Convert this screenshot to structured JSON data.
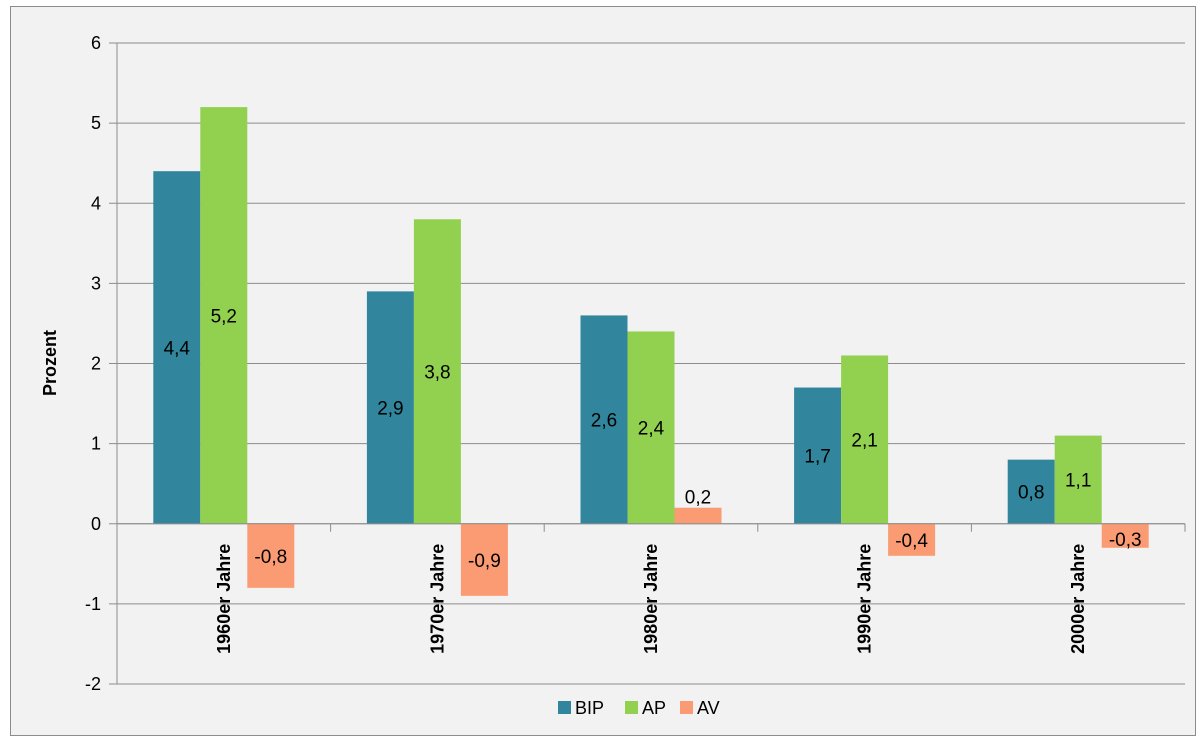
{
  "chart_data": {
    "type": "bar",
    "title": "",
    "xlabel": "",
    "ylabel": "Prozent",
    "ylim": [
      -2,
      6
    ],
    "yticks": [
      "6",
      "5",
      "4",
      "3",
      "2",
      "1",
      "0",
      "-1",
      "-2"
    ],
    "ytick_values": [
      6,
      5,
      4,
      3,
      2,
      1,
      0,
      -1,
      -2
    ],
    "categories": [
      "1960er Jahre",
      "1970er Jahre",
      "1980er Jahre",
      "1990er Jahre",
      "2000er Jahre"
    ],
    "series": [
      {
        "name": "BIP",
        "color": "#31859c",
        "values": [
          4.4,
          2.9,
          2.6,
          1.7,
          0.8
        ],
        "labels": [
          "4,4",
          "2,9",
          "2,6",
          "1,7",
          "0,8"
        ]
      },
      {
        "name": "AP",
        "color": "#92d050",
        "values": [
          5.2,
          3.8,
          2.4,
          2.1,
          1.1
        ],
        "labels": [
          "5,2",
          "3,8",
          "2,4",
          "2,1",
          "1,1"
        ]
      },
      {
        "name": "AV",
        "color": "#fa9b73",
        "values": [
          -0.8,
          -0.9,
          0.2,
          -0.4,
          -0.3
        ],
        "labels": [
          "-0,8",
          "-0,9",
          "0,2",
          "-0,4",
          "-0,3"
        ]
      }
    ],
    "grid": true,
    "legend_position": "bottom"
  }
}
